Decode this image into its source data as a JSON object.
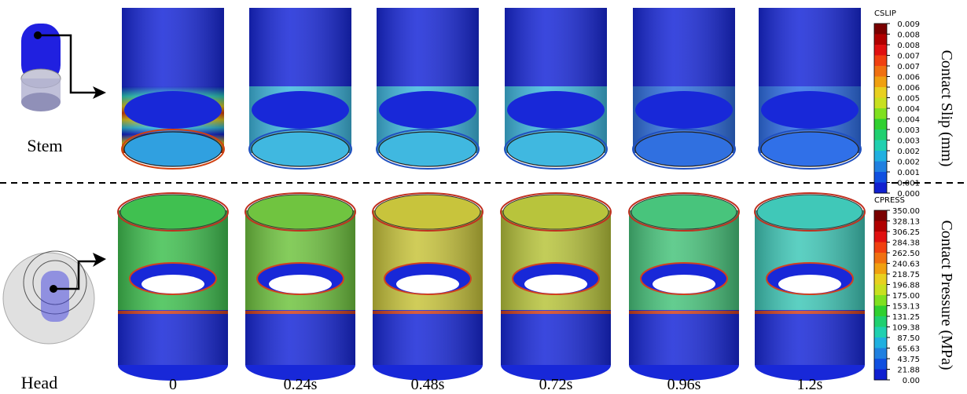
{
  "stem_label": "Stem",
  "head_label": "Head",
  "time_labels": [
    "0",
    "0.24s",
    "0.48s",
    "0.72s",
    "0.96s",
    "1.2s"
  ],
  "colorbars": [
    {
      "title": "CSLIP",
      "caption": "Contact Slip (mm)",
      "ticks": [
        "0.009",
        "0.008",
        "0.008",
        "0.007",
        "0.007",
        "0.006",
        "0.006",
        "0.005",
        "0.004",
        "0.004",
        "0.003",
        "0.003",
        "0.002",
        "0.002",
        "0.001",
        "0.001",
        "0.000"
      ]
    },
    {
      "title": "CPRESS",
      "caption": "Contact Pressure (MPa)",
      "ticks": [
        "350.00",
        "328.13",
        "306.25",
        "284.38",
        "262.50",
        "240.63",
        "218.75",
        "196.88",
        "175.00",
        "153.13",
        "131.25",
        "109.38",
        "87.50",
        "65.63",
        "43.75",
        "21.88",
        "0.00"
      ]
    }
  ]
}
